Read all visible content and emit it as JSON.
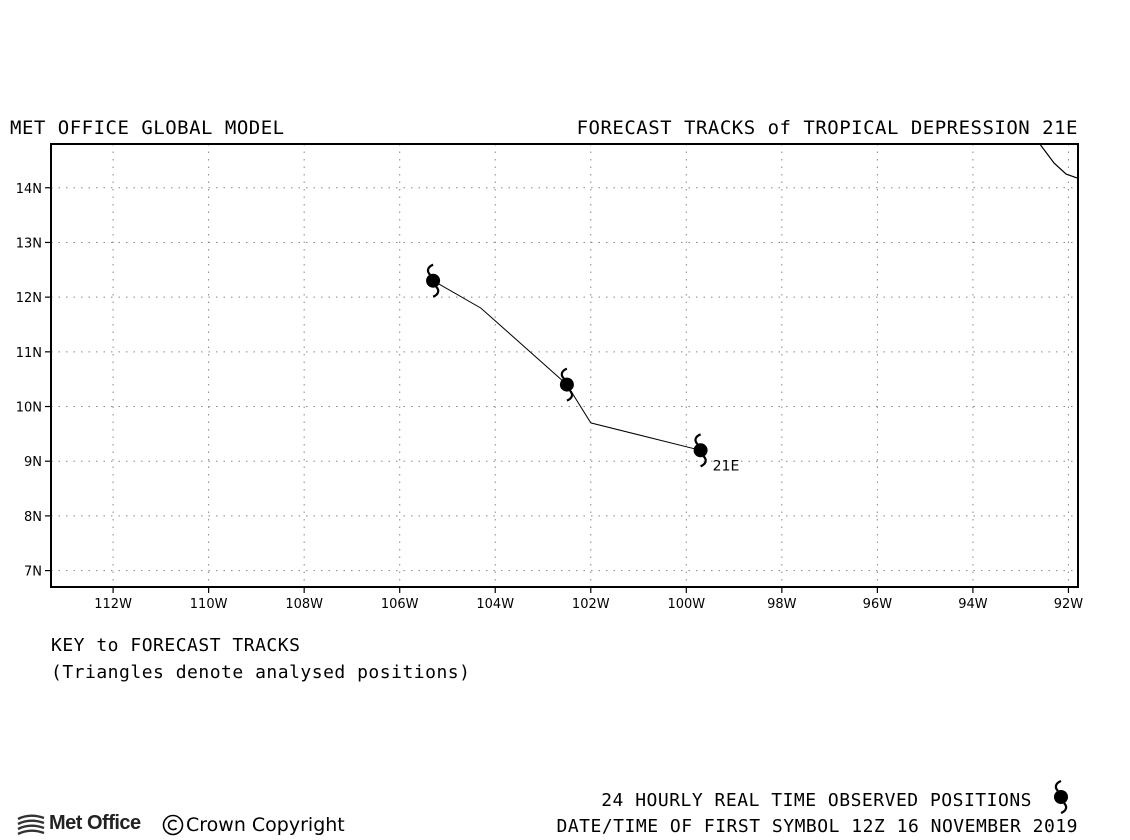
{
  "header": {
    "left_title": "MET OFFICE GLOBAL MODEL",
    "right_title": "FORECAST TRACKS of TROPICAL DEPRESSION 21E"
  },
  "map": {
    "projection_lon_range": [
      -113.3,
      -91.8
    ],
    "projection_lat_range": [
      6.7,
      14.8
    ],
    "gridlines": "dotted",
    "lon_ticks": [
      {
        "value": -112,
        "label": "112W"
      },
      {
        "value": -110,
        "label": "110W"
      },
      {
        "value": -108,
        "label": "108W"
      },
      {
        "value": -106,
        "label": "106W"
      },
      {
        "value": -104,
        "label": "104W"
      },
      {
        "value": -102,
        "label": "102W"
      },
      {
        "value": -100,
        "label": "100W"
      },
      {
        "value": -98,
        "label": "98W"
      },
      {
        "value": -96,
        "label": "96W"
      },
      {
        "value": -94,
        "label": "94W"
      },
      {
        "value": -92,
        "label": "92W"
      }
    ],
    "lat_ticks": [
      {
        "value": 7,
        "label": "7N"
      },
      {
        "value": 8,
        "label": "8N"
      },
      {
        "value": 9,
        "label": "9N"
      },
      {
        "value": 10,
        "label": "10N"
      },
      {
        "value": 11,
        "label": "11N"
      },
      {
        "value": 12,
        "label": "12N"
      },
      {
        "value": 13,
        "label": "13N"
      },
      {
        "value": 14,
        "label": "14N"
      }
    ],
    "coastline": [
      {
        "lon": -92.6,
        "lat": 14.8
      },
      {
        "lon": -92.3,
        "lat": 14.45
      },
      {
        "lon": -92.05,
        "lat": 14.25
      },
      {
        "lon": -91.82,
        "lat": 14.18
      }
    ],
    "storm_label": "21E",
    "track": [
      {
        "lon": -99.7,
        "lat": 9.2
      },
      {
        "lon": -102.0,
        "lat": 9.7
      },
      {
        "lon": -102.5,
        "lat": 10.4
      },
      {
        "lon": -104.3,
        "lat": 11.8
      },
      {
        "lon": -105.3,
        "lat": 12.3
      }
    ],
    "observed_positions": [
      {
        "lon": -99.7,
        "lat": 9.2,
        "label": "21E"
      },
      {
        "lon": -102.5,
        "lat": 10.4,
        "label": ""
      },
      {
        "lon": -105.3,
        "lat": 12.3,
        "label": ""
      }
    ]
  },
  "key": {
    "title": "KEY to FORECAST TRACKS",
    "note": "(Triangles denote analysed positions)"
  },
  "footer": {
    "observed_label": "24 HOURLY REAL TIME OBSERVED POSITIONS",
    "datetime_label": "DATE/TIME OF FIRST SYMBOL 12Z 16 NOVEMBER 2019",
    "logo_text": "Met Office",
    "copyright_text": "Crown Copyright",
    "symbol_icon": "tropical-cyclone-icon",
    "copyright_icon": "copyright-icon"
  }
}
